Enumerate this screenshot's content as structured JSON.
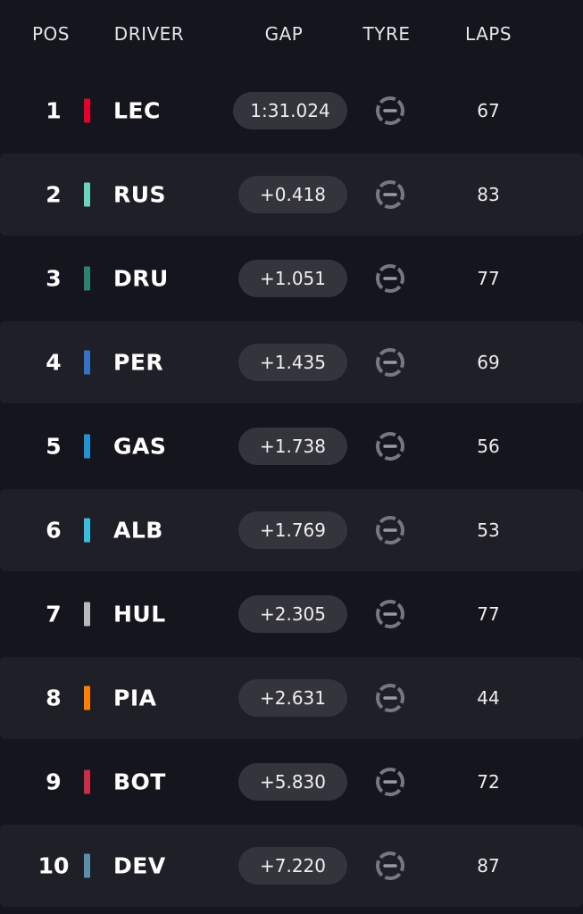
{
  "table": {
    "columns": [
      "POS",
      "DRIVER",
      "GAP",
      "TYRE",
      "LAPS"
    ],
    "rows": [
      {
        "pos": 1,
        "driver": "LEC",
        "color": "#e8002d",
        "gap": "1:31.024",
        "laps": 67
      },
      {
        "pos": 2,
        "driver": "RUS",
        "color": "#6cd3bf",
        "gap": "+0.418",
        "laps": 83
      },
      {
        "pos": 3,
        "driver": "DRU",
        "color": "#2d826d",
        "gap": "+1.051",
        "laps": 77
      },
      {
        "pos": 4,
        "driver": "PER",
        "color": "#3671c6",
        "gap": "+1.435",
        "laps": 69
      },
      {
        "pos": 5,
        "driver": "GAS",
        "color": "#2293d1",
        "gap": "+1.738",
        "laps": 56
      },
      {
        "pos": 6,
        "driver": "ALB",
        "color": "#37bedd",
        "gap": "+1.769",
        "laps": 53
      },
      {
        "pos": 7,
        "driver": "HUL",
        "color": "#b6babd",
        "gap": "+2.305",
        "laps": 77
      },
      {
        "pos": 8,
        "driver": "PIA",
        "color": "#ff8000",
        "gap": "+2.631",
        "laps": 44
      },
      {
        "pos": 9,
        "driver": "BOT",
        "color": "#c92d4b",
        "gap": "+5.830",
        "laps": 72
      },
      {
        "pos": 10,
        "driver": "DEV",
        "color": "#5e8faa",
        "gap": "+7.220",
        "laps": 87
      }
    ]
  }
}
